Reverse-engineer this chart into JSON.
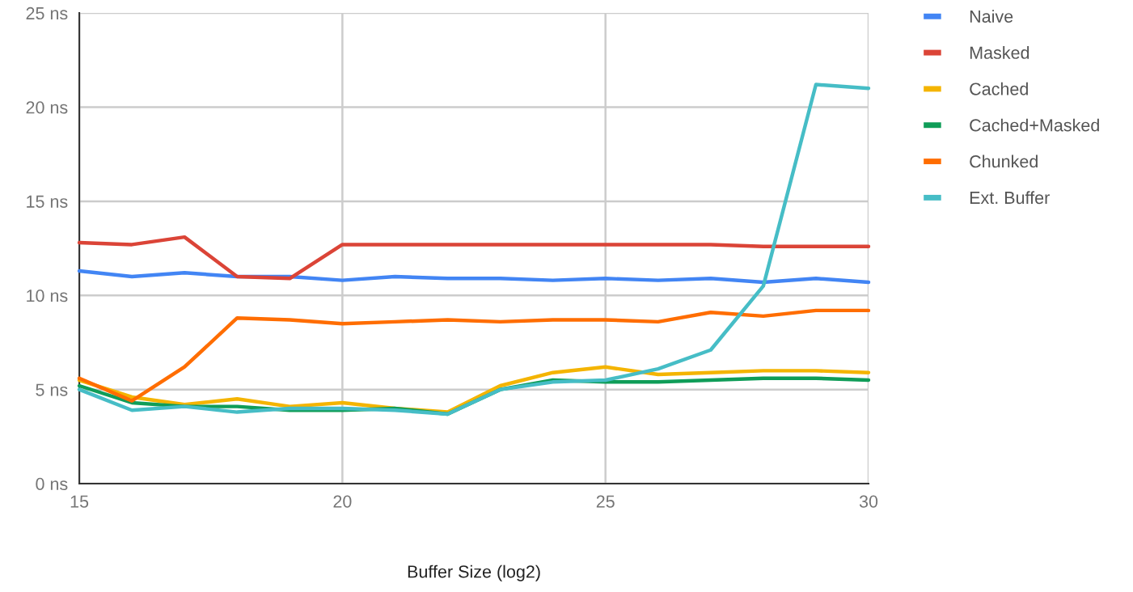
{
  "chart_data": {
    "type": "line",
    "xlabel": "Buffer Size (log2)",
    "x": [
      15,
      16,
      17,
      18,
      19,
      20,
      21,
      22,
      23,
      24,
      25,
      26,
      27,
      28,
      29,
      30
    ],
    "series": [
      {
        "name": "Naive",
        "color": "#4285f4",
        "values": [
          11.3,
          11.0,
          11.2,
          11.0,
          11.0,
          10.8,
          11.0,
          10.9,
          10.9,
          10.8,
          10.9,
          10.8,
          10.9,
          10.7,
          10.9,
          10.7
        ]
      },
      {
        "name": "Masked",
        "color": "#db4437",
        "values": [
          12.8,
          12.7,
          13.1,
          11.0,
          10.9,
          12.7,
          12.7,
          12.7,
          12.7,
          12.7,
          12.7,
          12.7,
          12.7,
          12.6,
          12.6,
          12.6
        ]
      },
      {
        "name": "Cached",
        "color": "#f4b400",
        "values": [
          5.5,
          4.6,
          4.2,
          4.5,
          4.1,
          4.3,
          4.0,
          3.8,
          5.2,
          5.9,
          6.2,
          5.8,
          5.9,
          6.0,
          6.0,
          5.9
        ]
      },
      {
        "name": "Cached+Masked",
        "color": "#0f9d58",
        "values": [
          5.2,
          4.3,
          4.1,
          4.1,
          3.9,
          3.9,
          4.0,
          3.7,
          5.0,
          5.5,
          5.4,
          5.4,
          5.5,
          5.6,
          5.6,
          5.5
        ]
      },
      {
        "name": "Chunked",
        "color": "#ff6d00",
        "values": [
          5.6,
          4.4,
          6.2,
          8.8,
          8.7,
          8.5,
          8.6,
          8.7,
          8.6,
          8.7,
          8.7,
          8.6,
          9.1,
          8.9,
          9.2,
          9.2
        ]
      },
      {
        "name": "Ext. Buffer",
        "color": "#46bdc6",
        "values": [
          5.0,
          3.9,
          4.1,
          3.8,
          4.0,
          4.0,
          3.9,
          3.7,
          5.0,
          5.4,
          5.5,
          6.1,
          7.1,
          10.5,
          21.2,
          21.0
        ]
      }
    ],
    "xlim": [
      15,
      30
    ],
    "xticks": [
      15,
      20,
      25,
      30
    ],
    "ylim": [
      0,
      25
    ],
    "yticks": [
      {
        "value": 0,
        "label": "0 ns"
      },
      {
        "value": 5,
        "label": "5 ns"
      },
      {
        "value": 10,
        "label": "10 ns"
      },
      {
        "value": 15,
        "label": "15 ns"
      },
      {
        "value": 20,
        "label": "20 ns"
      },
      {
        "value": 25,
        "label": "25 ns"
      }
    ],
    "grid": true,
    "legend": "right",
    "marker": "none",
    "line_style": "solid"
  }
}
